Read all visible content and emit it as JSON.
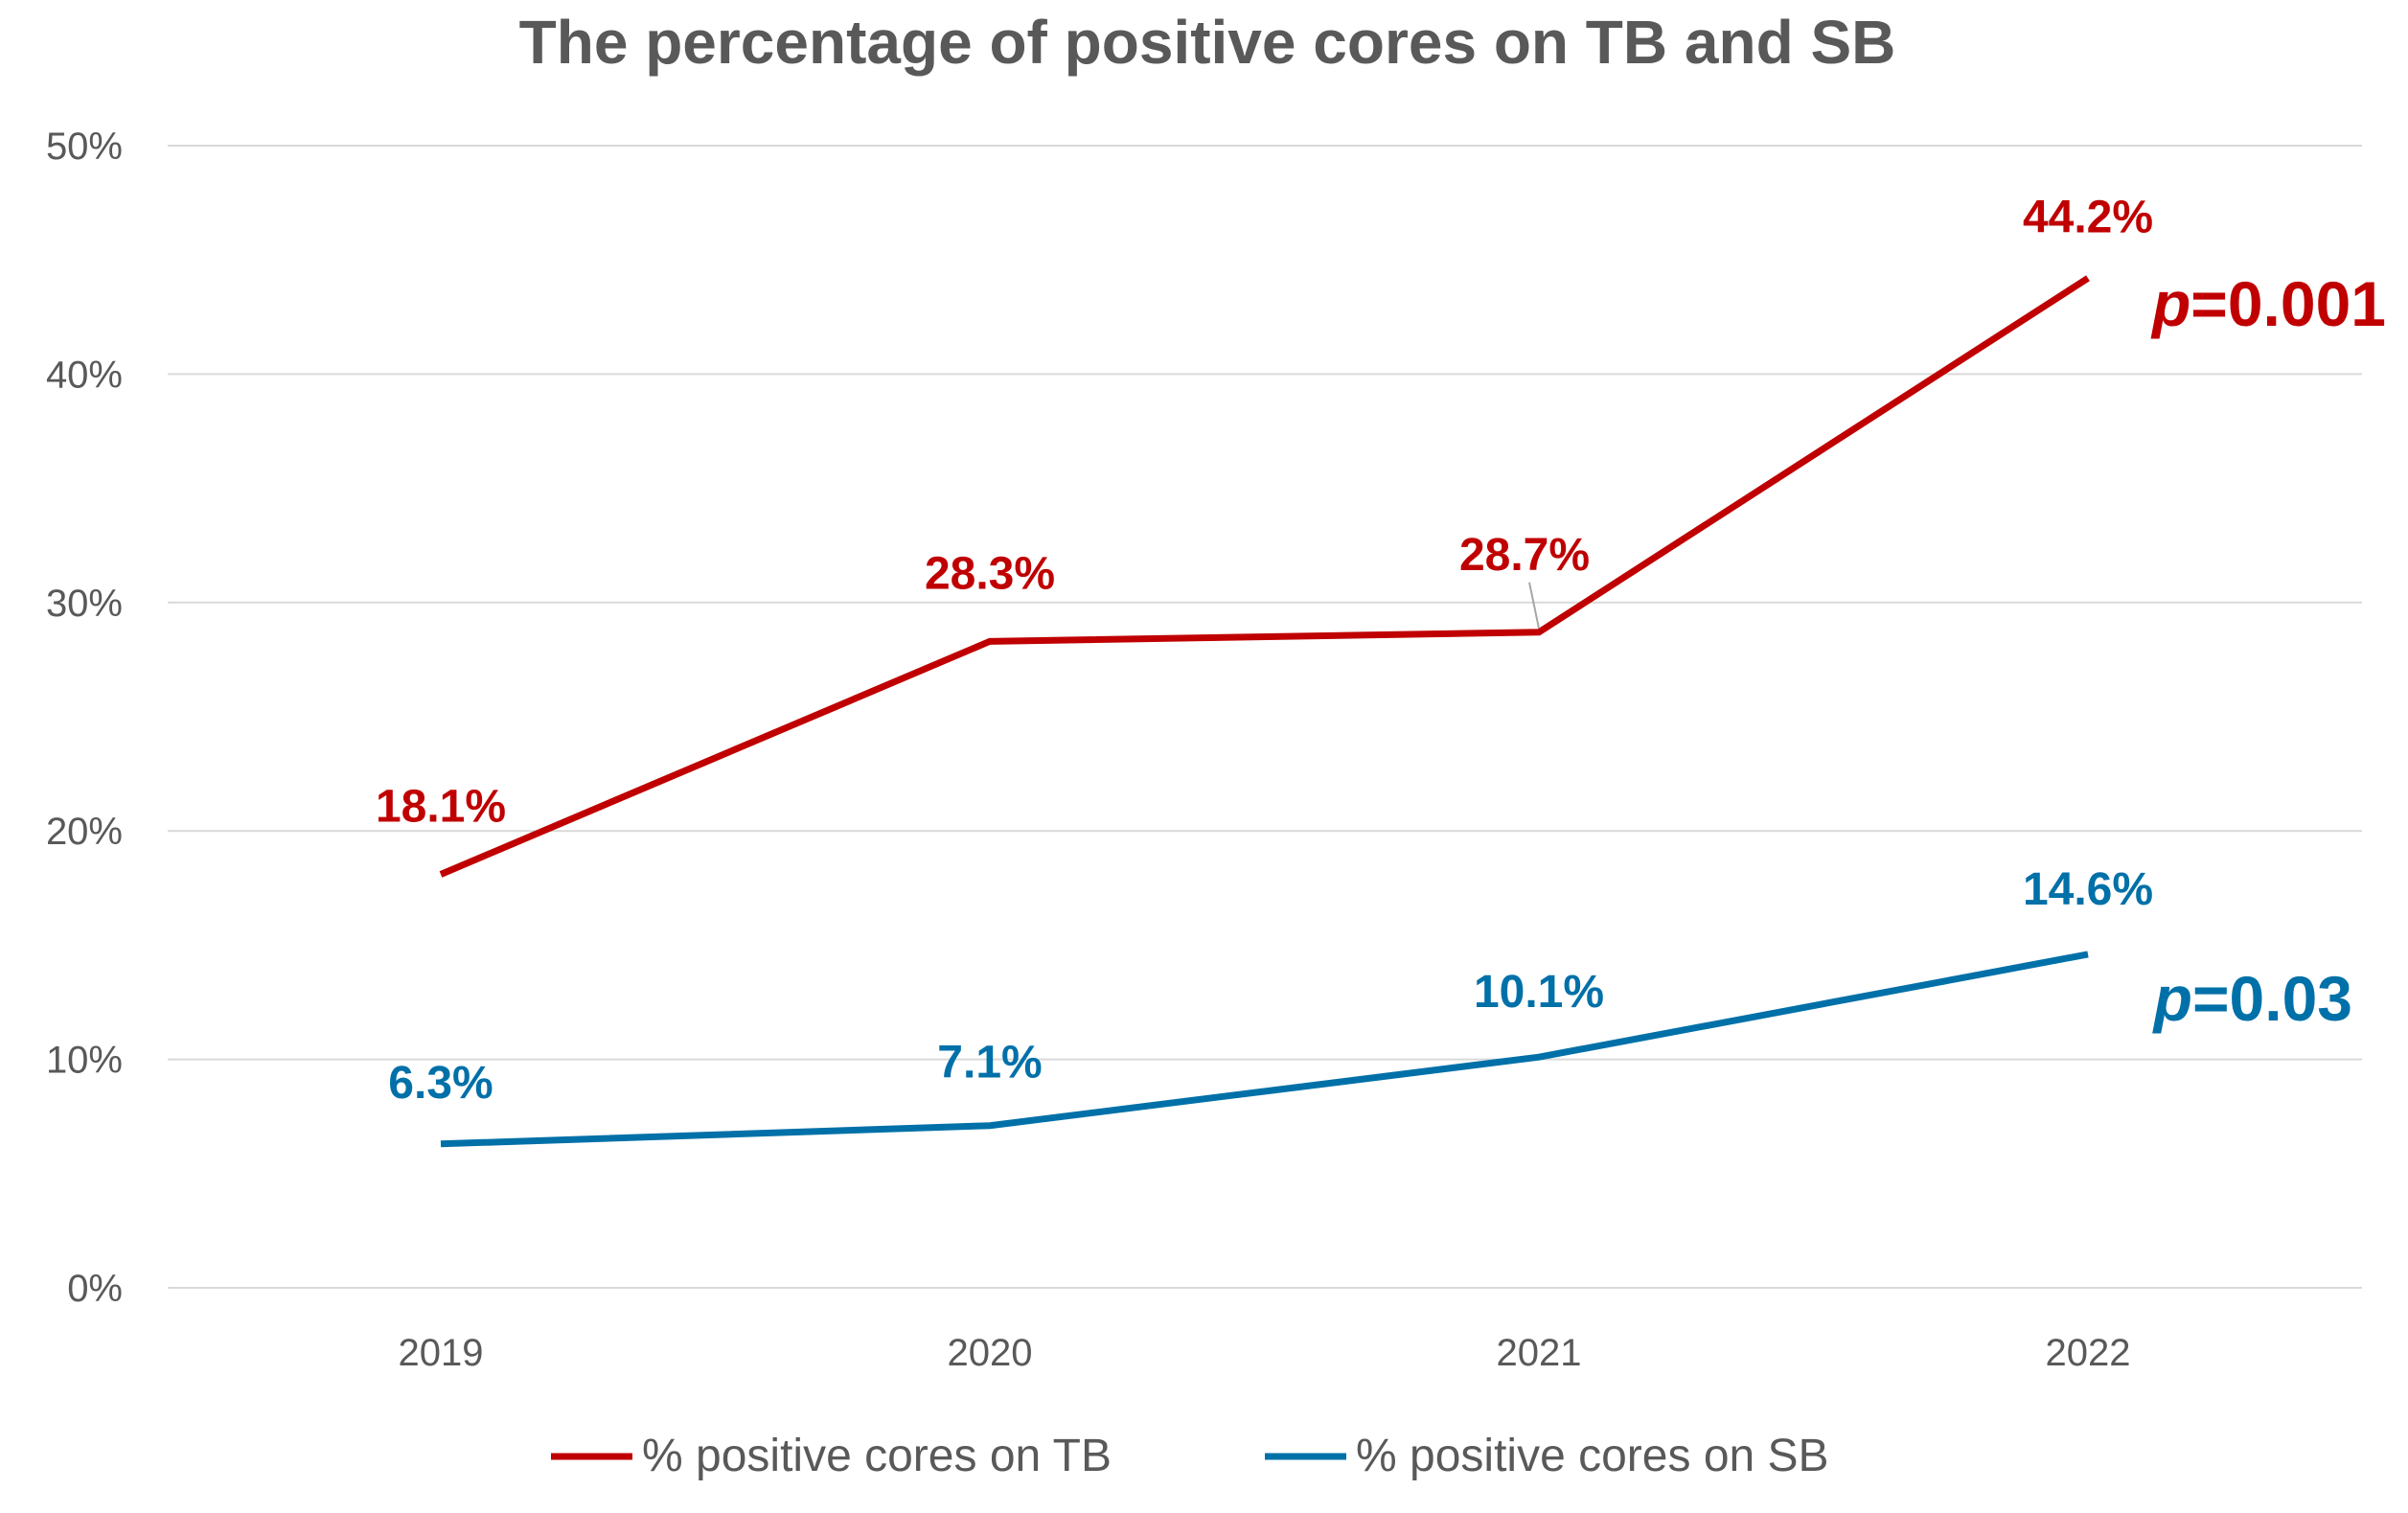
{
  "chart_data": {
    "type": "line",
    "title": "The percentage of positive cores on TB and SB",
    "xlabel": "",
    "ylabel": "",
    "categories": [
      "2019",
      "2020",
      "2021",
      "2022"
    ],
    "ylim": [
      0,
      50
    ],
    "yticks": [
      0,
      10,
      20,
      30,
      40,
      50
    ],
    "ytick_labels": [
      "0%",
      "10%",
      "20%",
      "30%",
      "40%",
      "50%"
    ],
    "grid": true,
    "legend_position": "bottom",
    "series": [
      {
        "name": "% positive cores on TB",
        "color": "#C00000",
        "values": [
          18.1,
          28.3,
          28.7,
          44.2
        ],
        "labels": [
          "18.1%",
          "28.3%",
          "28.7%",
          "44.2%"
        ],
        "annotation": {
          "italic": "p",
          "rest": "=0.001"
        }
      },
      {
        "name": "% positive cores on SB",
        "color": "#0070A8",
        "values": [
          6.3,
          7.1,
          10.1,
          14.6
        ],
        "labels": [
          "6.3%",
          "7.1%",
          "10.1%",
          "14.6%"
        ],
        "annotation": {
          "italic": "p",
          "rest": "=0.03"
        }
      }
    ]
  }
}
